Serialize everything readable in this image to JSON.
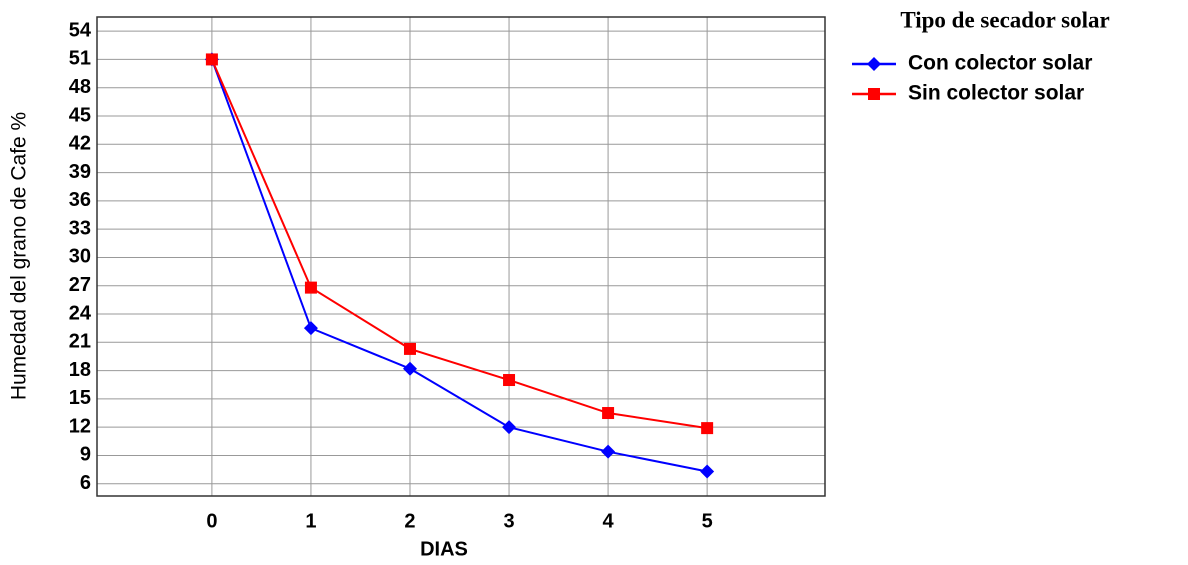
{
  "chart_data": {
    "type": "line",
    "x_label": "DIAS",
    "y_label": "Humedad del grano de Cafe %",
    "legend_title": "Tipo de secador solar",
    "legend": "outside-right",
    "grid": true,
    "x": [
      0,
      1,
      2,
      3,
      4,
      5
    ],
    "xlim": [
      -1.16,
      6.19
    ],
    "xticks": [
      0,
      1,
      2,
      3,
      4,
      5
    ],
    "ylim": [
      4.7,
      55.5
    ],
    "yticks": [
      6,
      9,
      12,
      15,
      18,
      21,
      24,
      27,
      30,
      33,
      36,
      39,
      42,
      45,
      48,
      51,
      54
    ],
    "series": [
      {
        "name": "Con colector solar",
        "color": "#0000ff",
        "marker": "diamond",
        "values": [
          51,
          22.5,
          18.2,
          12,
          9.4,
          7.3
        ]
      },
      {
        "name": "Sin colector solar",
        "color": "#ff0000",
        "marker": "square",
        "values": [
          51,
          26.8,
          20.3,
          17,
          13.5,
          11.9
        ]
      }
    ]
  }
}
